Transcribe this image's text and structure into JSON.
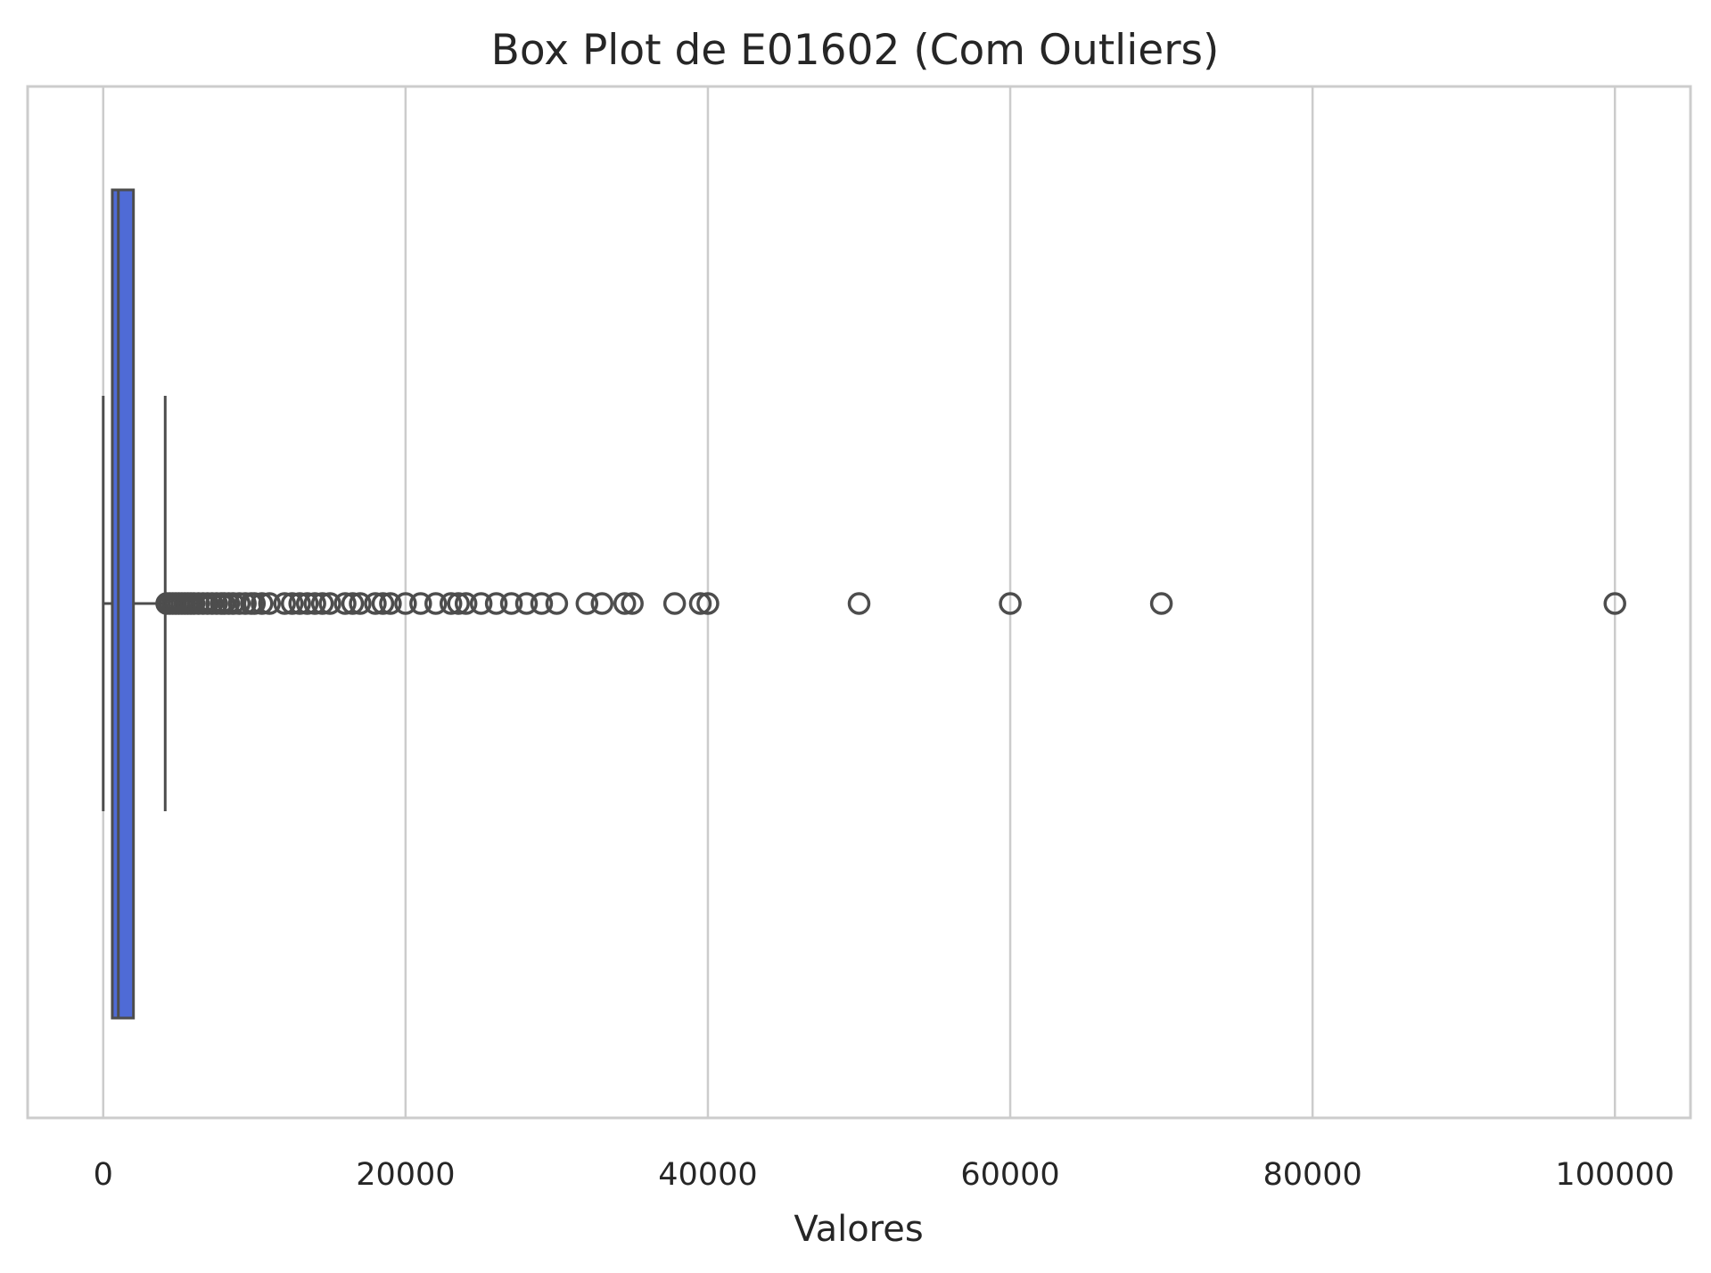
{
  "chart_data": {
    "type": "boxplot",
    "orientation": "horizontal",
    "title": "Box Plot de E01602 (Com Outliers)",
    "xlabel": "Valores",
    "ylabel": "",
    "xlim": [
      -5000,
      105000
    ],
    "xticks": [
      0,
      20000,
      40000,
      60000,
      80000,
      100000
    ],
    "xtick_labels": [
      "0",
      "20000",
      "40000",
      "60000",
      "80000",
      "100000"
    ],
    "grid": {
      "x": true,
      "y": false
    },
    "box": {
      "whisker_low": 0,
      "q1": 600,
      "median": 1000,
      "q3": 2000,
      "whisker_high": 4100
    },
    "outliers": [
      4200,
      4400,
      4600,
      4800,
      5000,
      5200,
      5400,
      5600,
      5800,
      6000,
      6300,
      6600,
      6900,
      7200,
      7500,
      7800,
      8000,
      8300,
      8600,
      9000,
      9400,
      9800,
      10000,
      10500,
      11000,
      12000,
      12500,
      13000,
      13500,
      14000,
      14500,
      15000,
      16000,
      16500,
      17000,
      18000,
      18500,
      19000,
      20000,
      21000,
      22000,
      23000,
      23500,
      24000,
      25000,
      26000,
      27000,
      28000,
      29000,
      30000,
      32000,
      33000,
      34500,
      35000,
      37800,
      39500,
      40000,
      50000,
      60000,
      70000,
      100000
    ],
    "colors": {
      "box_fill": "#4f6bd6",
      "line": "#4d4d4d",
      "grid": "#cccccc",
      "frame": "#cccccc",
      "background": "#ffffff"
    }
  }
}
